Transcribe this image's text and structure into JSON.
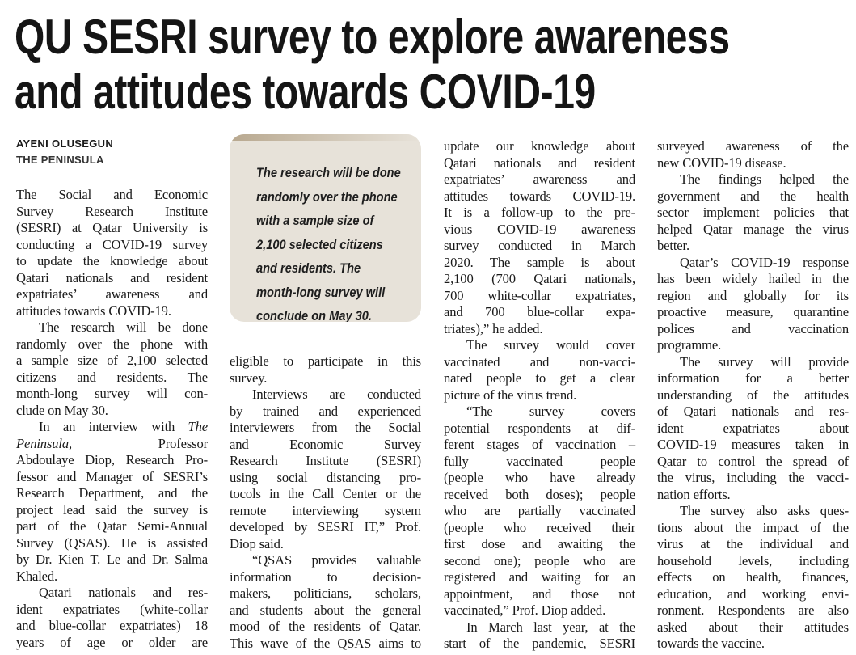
{
  "headline": {
    "line1": "QU SESRI survey to explore awareness",
    "line2": "and attitudes towards COVID-19"
  },
  "byline": {
    "author": "AYENI OLUSEGUN",
    "publication": "THE PENINSULA"
  },
  "pull_quote": {
    "lines": [
      "The research will be done",
      "randomly over the phone",
      "with a sample size of",
      "2,100 selected citizens",
      "and residents. The",
      "month-long survey will",
      "conclude on May 30."
    ]
  },
  "columns": [
    [
      {
        "indent": false,
        "lines": [
          "The Social and Economic",
          "Survey Research Institute",
          "(SESRI) at Qatar University is",
          "conducting a COVID-19 survey",
          "to update the knowledge about",
          "Qatari nationals and resident",
          "expatriates’ awareness and",
          "attitudes towards COVID-19."
        ]
      },
      {
        "indent": true,
        "lines": [
          "The research will be done",
          "randomly over the phone with",
          "a sample size of 2,100 selected",
          "citizens and residents. The",
          "month-long survey will con-",
          "clude on May 30."
        ]
      },
      {
        "indent": true,
        "lines": [
          [
            [
              "In an interview with ",
              false
            ],
            [
              "The",
              true
            ]
          ],
          [
            [
              "Peninsula",
              true
            ],
            [
              ", Professor",
              false
            ]
          ],
          "Abdoulaye Diop, Research Pro-",
          "fessor and Manager of SESRI’s",
          "Research Department, and the",
          "project lead said the survey is",
          "part of the Qatar Semi-Annual",
          "Survey (QSAS). He is assisted",
          "by Dr. Kien T. Le and Dr. Salma",
          "Khaled."
        ]
      },
      {
        "indent": true,
        "open": true,
        "lines": [
          "Qatari nationals and res-",
          "ident expatriates (white-collar",
          "and blue-collar expatriates) 18",
          "years of age or older are"
        ]
      }
    ],
    [
      {
        "indent": false,
        "lines": [
          "eligible to participate in this",
          "survey."
        ]
      },
      {
        "indent": true,
        "lines": [
          "Interviews are conducted",
          "by trained and experienced",
          "interviewers from the Social",
          "and Economic Survey",
          "Research Institute (SESRI)",
          "using social distancing pro-",
          "tocols in the Call Center or the",
          "remote interviewing system",
          "developed by SESRI IT,” Prof.",
          "Diop said."
        ]
      },
      {
        "indent": true,
        "open": true,
        "lines": [
          "“QSAS provides valuable",
          "information to decision-",
          "makers, politicians, scholars,",
          "and students about the general",
          "mood of the residents of Qatar.",
          "This wave of the QSAS aims to"
        ]
      }
    ],
    [
      {
        "indent": false,
        "lines": [
          "update our knowledge about",
          "Qatari nationals and resident",
          "expatriates’ awareness and",
          "attitudes towards COVID-19.",
          "It is a follow-up to the pre-",
          "vious COVID-19 awareness",
          "survey conducted in March",
          "2020. The sample is about",
          "2,100 (700 Qatari nationals,",
          "700 white-collar expatriates,",
          "and 700 blue-collar expa-",
          "triates),” he added."
        ]
      },
      {
        "indent": true,
        "lines": [
          "The survey would cover",
          "vaccinated and non-vacci-",
          "nated people to get a clear",
          "picture of the virus trend."
        ]
      },
      {
        "indent": true,
        "lines": [
          "“The survey covers",
          "potential respondents at dif-",
          "ferent stages of vaccination –",
          "fully vaccinated people",
          "(people who have already",
          "received both doses); people",
          "who are partially vaccinated",
          "(people who received their",
          "first dose and awaiting the",
          "second one); people who are",
          "registered and waiting for an",
          "appointment, and those not",
          "vaccinated,” Prof. Diop added."
        ]
      },
      {
        "indent": true,
        "open": true,
        "lines": [
          "In March last year, at the",
          "start of the pandemic, SESRI"
        ]
      }
    ],
    [
      {
        "indent": false,
        "lines": [
          "surveyed awareness of the",
          "new COVID-19 disease."
        ]
      },
      {
        "indent": true,
        "lines": [
          "The findings helped the",
          "government and the health",
          "sector implement policies that",
          "helped Qatar manage the virus",
          "better."
        ]
      },
      {
        "indent": true,
        "lines": [
          "Qatar’s COVID-19 response",
          "has been widely hailed in the",
          "region and globally for its",
          "proactive measure, quarantine",
          "polices and vaccination",
          "programme."
        ]
      },
      {
        "indent": true,
        "lines": [
          "The survey will provide",
          "information for a better",
          "understanding of the attitudes",
          "of Qatari nationals and res-",
          "ident expatriates about",
          "COVID-19 measures taken in",
          "Qatar to control the spread of",
          "the virus, including the vacci-",
          "nation efforts."
        ]
      },
      {
        "indent": true,
        "lines": [
          "The survey also asks ques-",
          "tions about the impact of the",
          "virus at the individual and",
          "household levels, including",
          "effects on health, finances,",
          "education, and working envi-",
          "ronment. Respondents are also",
          "asked about their attitudes",
          "towards the vaccine."
        ]
      }
    ]
  ]
}
